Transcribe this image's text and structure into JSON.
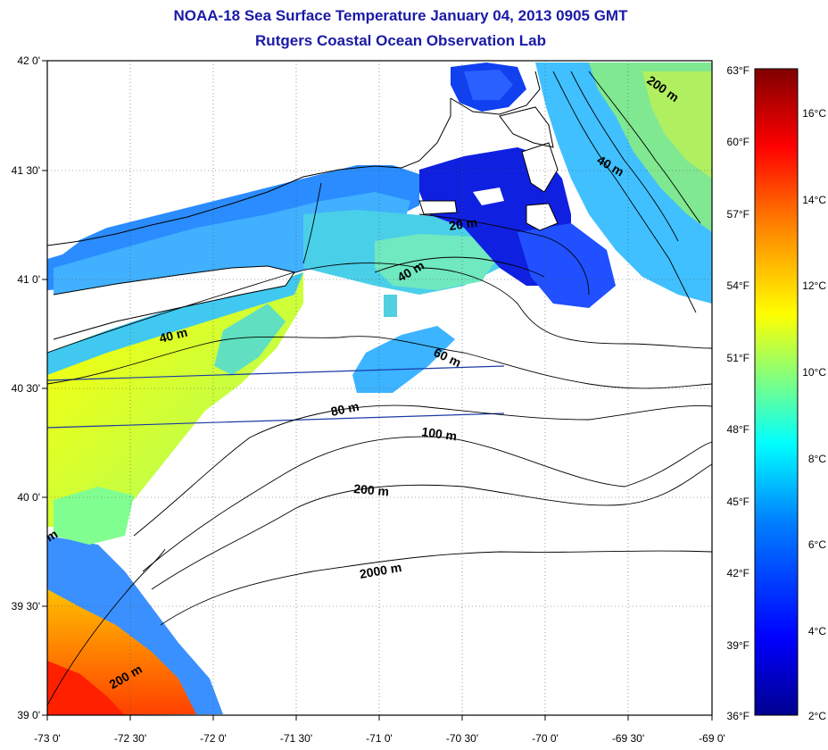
{
  "title": "NOAA-18 Sea Surface Temperature January 04, 2013 0905 GMT",
  "subtitle": "Rutgers Coastal Ocean Observation Lab",
  "latitude_labels": [
    "42 0'",
    "41 30'",
    "41 0'",
    "40 30'",
    "40 0'",
    "39 30'",
    "39 0'"
  ],
  "longitude_labels": [
    "-73 0'",
    "-72 30'",
    "-72 0'",
    "-71 30'",
    "-71 0'",
    "-70 30'",
    "-70 0'",
    "-69 30'",
    "-69 0'"
  ],
  "fahrenheit_labels": [
    "63°F",
    "60°F",
    "57°F",
    "54°F",
    "51°F",
    "48°F",
    "45°F",
    "42°F",
    "39°F",
    "36°F"
  ],
  "celsius_labels": [
    "16°C",
    "14°C",
    "12°C",
    "10°C",
    "8°C",
    "6°C",
    "4°C",
    "2°C"
  ],
  "contour_labels": [
    "200 m",
    "40 m",
    "20 m",
    "40 m",
    "40 m",
    "60 m",
    "80 m",
    "100 m",
    "200 m",
    "2000 m",
    "200 m",
    "m"
  ],
  "colorbar": {
    "min_c": 2,
    "max_c": 17,
    "colors": [
      "#00008f",
      "#0000ff",
      "#0080ff",
      "#00ffff",
      "#80ff80",
      "#ffff00",
      "#ff8000",
      "#ff0000",
      "#800000"
    ]
  },
  "colors": {
    "title": "#1a1aa6",
    "land": "#ffffff",
    "contour": "#000000",
    "track": "#1a3aa6"
  }
}
